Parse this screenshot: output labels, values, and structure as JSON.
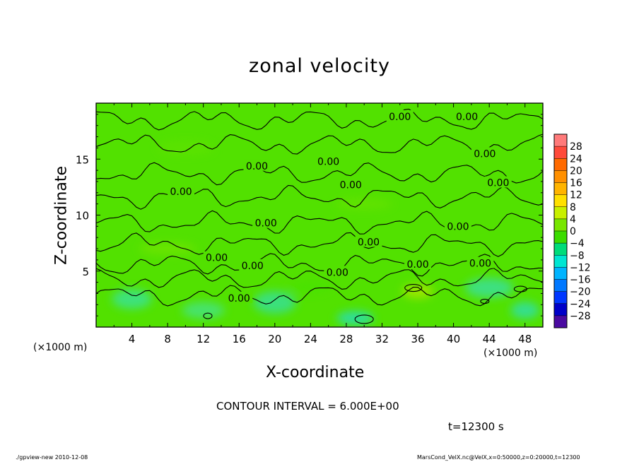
{
  "header": {
    "title": "zonal velocity"
  },
  "footer": {
    "contour_interval": "CONTOUR INTERVAL = 6.000E+00",
    "time": "t=12300 s",
    "program": "./gpview-new   2010-12-08",
    "source": "MarsCond_VelX.nc@VelX,x=0:50000,z=0:20000,t=12300"
  },
  "chart_data": {
    "type": "heatmap",
    "title": "zonal velocity",
    "xlabel": "X-coordinate",
    "ylabel": "Z-coordinate",
    "x_unit": "(×1000 m)",
    "z_unit": "(×1000 m)",
    "xlim": [
      0,
      50
    ],
    "ylim": [
      0,
      20
    ],
    "x_ticks": [
      4,
      8,
      12,
      16,
      20,
      24,
      28,
      32,
      36,
      40,
      44,
      48
    ],
    "y_ticks": [
      5,
      10,
      15
    ],
    "contour_interval": 6.0,
    "contour_labels": [
      {
        "x": 34,
        "z": 18.8,
        "text": "0.00"
      },
      {
        "x": 41.5,
        "z": 18.8,
        "text": "0.00"
      },
      {
        "x": 18,
        "z": 14.4,
        "text": "0.00"
      },
      {
        "x": 26,
        "z": 14.8,
        "text": "0.00"
      },
      {
        "x": 43.5,
        "z": 15.5,
        "text": "0.00"
      },
      {
        "x": 28.5,
        "z": 12.7,
        "text": "0.00"
      },
      {
        "x": 45,
        "z": 12.9,
        "text": "0.00"
      },
      {
        "x": 9.5,
        "z": 12.1,
        "text": "0.00"
      },
      {
        "x": 19,
        "z": 9.3,
        "text": "0.00"
      },
      {
        "x": 40.5,
        "z": 9.0,
        "text": "0.00"
      },
      {
        "x": 30.5,
        "z": 7.6,
        "text": "0.00"
      },
      {
        "x": 13.5,
        "z": 6.2,
        "text": "0.00"
      },
      {
        "x": 17.5,
        "z": 5.5,
        "text": "0.00"
      },
      {
        "x": 27,
        "z": 4.9,
        "text": "0.00"
      },
      {
        "x": 36,
        "z": 5.6,
        "text": "0.00"
      },
      {
        "x": 43,
        "z": 5.7,
        "text": "0.00"
      },
      {
        "x": 16,
        "z": 2.6,
        "text": "0.00"
      }
    ],
    "colorbar": {
      "levels": [
        28,
        24,
        20,
        16,
        12,
        8,
        4,
        0,
        -4,
        -8,
        -12,
        -16,
        -20,
        -24,
        -28
      ],
      "colors": [
        "#ff7a7a",
        "#ff4a3a",
        "#ff6a00",
        "#ff9000",
        "#ffb400",
        "#ffe000",
        "#c8f000",
        "#78e600",
        "#3cdc00",
        "#00dc7a",
        "#00e6d2",
        "#00b4ff",
        "#0078ff",
        "#0037ff",
        "#0000c8",
        "#4a0aa0"
      ]
    }
  }
}
